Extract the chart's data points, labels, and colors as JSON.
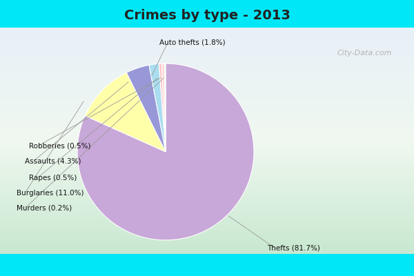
{
  "title": "Crimes by type - 2013",
  "labels": [
    "Thefts",
    "Burglaries",
    "Assaults",
    "Auto thefts",
    "Rapes",
    "Robberies",
    "Murders"
  ],
  "label_pcts": [
    "81.7%",
    "11.0%",
    "4.3%",
    "1.8%",
    "0.5%",
    "0.5%",
    "0.2%"
  ],
  "values": [
    81.7,
    11.0,
    4.3,
    1.8,
    0.5,
    0.5,
    0.2
  ],
  "colors": [
    "#c8a8d8",
    "#ffffaa",
    "#9898d8",
    "#aaddf0",
    "#ffc8c8",
    "#ffd8d8",
    "#d0eed0"
  ],
  "title_fontsize": 14,
  "title_color": "#222222",
  "watermark": "City-Data.com",
  "label_fontsize": 7.5,
  "cyan_color": "#00e8f8",
  "bg_color": "#e0f0e8"
}
